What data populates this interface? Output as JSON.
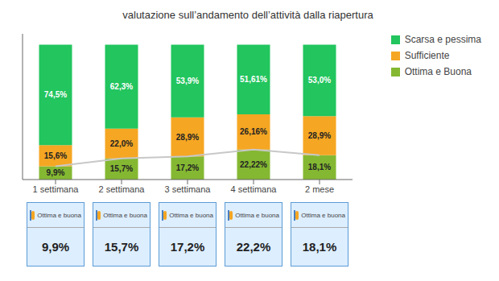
{
  "chart_data": {
    "type": "bar",
    "title": "valutazione sull’andamento dell’attività dalla riapertura",
    "categories": [
      "1 settimana",
      "2 settimana",
      "3 settimana",
      "4 settimana",
      "2 mese"
    ],
    "stacked": true,
    "series": [
      {
        "name": "Ottima e Buona",
        "color": "#84b832",
        "values": [
          9.9,
          15.7,
          17.2,
          22.22,
          18.1
        ],
        "value_labels": [
          "9,9%",
          "15,7%",
          "17,2%",
          "22,22%",
          "18,1%"
        ]
      },
      {
        "name": "Sufficiente",
        "color": "#f5a623",
        "values": [
          15.6,
          22.0,
          28.9,
          26.16,
          28.9
        ],
        "value_labels": [
          "15,6%",
          "22,0%",
          "28,9%",
          "26,16%",
          "28,9%"
        ]
      },
      {
        "name": "Scarsa e pessima",
        "color": "#22c55e",
        "values": [
          74.5,
          62.3,
          53.9,
          51.61,
          53.0
        ],
        "value_labels": [
          "74,5%",
          "62,3%",
          "53,9%",
          "51,61%",
          "53,0%"
        ]
      },
      {
        "type": "line",
        "color": "#c8c8c8",
        "values": [
          9.9,
          15.7,
          17.2,
          22.22,
          18.1
        ]
      }
    ],
    "ylim": [
      0,
      108
    ],
    "tick_labels": "x",
    "data_labels": true,
    "legend": "upper right",
    "grid": false,
    "annotations": [
      {
        "text": "Ottima e buona",
        "value": 9.9,
        "label": "9,9%"
      },
      {
        "text": "Ottima e buona",
        "value": 15.7,
        "label": "15,7%"
      },
      {
        "text": "Ottima e buona",
        "value": 17.2,
        "label": "17,2%"
      },
      {
        "text": "Ottima e buona",
        "value": 22.2,
        "label": "22,2%"
      },
      {
        "text": "Ottima e buona",
        "value": 18.1,
        "label": "18,1%"
      }
    ]
  }
}
